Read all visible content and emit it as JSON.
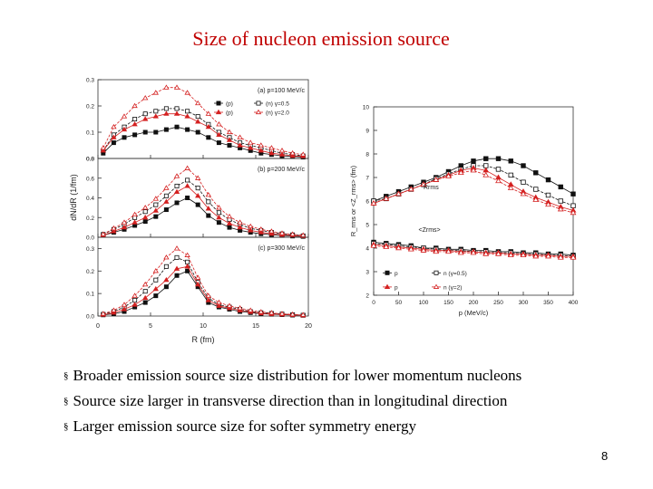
{
  "title": "Size of nucleon emission source",
  "bullets": [
    "Broader emission source size distribution for lower momentum nucleons",
    "Source size larger in transverse direction than in longitudinal direction",
    "Larger emission source size for softer symmetry energy"
  ],
  "bullet_marker": "§",
  "page_number": "8",
  "colors": {
    "black": "#111111",
    "red": "#d42020",
    "title": "#c00000"
  },
  "chart_data": [
    {
      "type": "line",
      "layout": "three stacked panels, shared x-axis",
      "xlabel": "R (fm)",
      "ylabel": "dN/dR (1/fm)",
      "xlim": [
        0,
        20
      ],
      "xticks": [
        "0",
        "5",
        "10",
        "15",
        "20"
      ],
      "x": [
        0.5,
        1.5,
        2.5,
        3.5,
        4.5,
        5.5,
        6.5,
        7.5,
        8.5,
        9.5,
        10.5,
        11.5,
        12.5,
        13.5,
        14.5,
        15.5,
        16.5,
        17.5,
        18.5,
        19.5
      ],
      "legend_labels": {
        "p_stiff": "(p)",
        "n_stiff": "(n) γ=0.5",
        "p_soft": "(p)",
        "n_soft": "(n) γ=2.0"
      },
      "panels": [
        {
          "label": "(a) p=100 MeV/c",
          "ylim": [
            0,
            0.3
          ],
          "yticks": [
            "0.0",
            "0.1",
            "0.2",
            "0.3"
          ],
          "series": [
            {
              "name": "p γ=0.5",
              "color": "black",
              "marker": "filled-square",
              "values": [
                0.02,
                0.06,
                0.08,
                0.09,
                0.1,
                0.1,
                0.11,
                0.12,
                0.11,
                0.1,
                0.08,
                0.06,
                0.05,
                0.04,
                0.03,
                0.02,
                0.015,
                0.01,
                0.008,
                0.005
              ]
            },
            {
              "name": "n γ=0.5",
              "color": "black",
              "marker": "open-square",
              "values": [
                0.03,
                0.09,
                0.12,
                0.15,
                0.17,
                0.18,
                0.19,
                0.19,
                0.18,
                0.16,
                0.13,
                0.1,
                0.08,
                0.06,
                0.05,
                0.04,
                0.03,
                0.02,
                0.015,
                0.01
              ]
            },
            {
              "name": "p γ=2.0",
              "color": "red",
              "marker": "filled-triangle",
              "values": [
                0.03,
                0.08,
                0.11,
                0.13,
                0.15,
                0.16,
                0.17,
                0.17,
                0.16,
                0.14,
                0.12,
                0.09,
                0.07,
                0.05,
                0.04,
                0.03,
                0.02,
                0.015,
                0.01,
                0.008
              ]
            },
            {
              "name": "n γ=2.0",
              "color": "red",
              "marker": "open-triangle",
              "values": [
                0.04,
                0.12,
                0.16,
                0.2,
                0.23,
                0.25,
                0.27,
                0.27,
                0.25,
                0.21,
                0.17,
                0.13,
                0.1,
                0.08,
                0.06,
                0.05,
                0.04,
                0.03,
                0.02,
                0.015
              ]
            }
          ]
        },
        {
          "label": "(b) p=200 MeV/c",
          "ylim": [
            0,
            0.8
          ],
          "yticks": [
            "0.0",
            "0.2",
            "0.4",
            "0.6",
            "0.8"
          ],
          "series": [
            {
              "name": "p γ=0.5",
              "color": "black",
              "marker": "filled-square",
              "values": [
                0.02,
                0.05,
                0.08,
                0.12,
                0.16,
                0.21,
                0.28,
                0.35,
                0.4,
                0.33,
                0.22,
                0.15,
                0.1,
                0.07,
                0.05,
                0.035,
                0.025,
                0.018,
                0.012,
                0.008
              ]
            },
            {
              "name": "n γ=0.5",
              "color": "black",
              "marker": "open-square",
              "values": [
                0.03,
                0.08,
                0.13,
                0.2,
                0.26,
                0.33,
                0.42,
                0.52,
                0.58,
                0.5,
                0.36,
                0.25,
                0.18,
                0.13,
                0.09,
                0.07,
                0.05,
                0.035,
                0.025,
                0.015
              ]
            },
            {
              "name": "p γ=2.0",
              "color": "red",
              "marker": "filled-triangle",
              "values": [
                0.02,
                0.06,
                0.1,
                0.15,
                0.2,
                0.27,
                0.36,
                0.46,
                0.52,
                0.42,
                0.29,
                0.2,
                0.14,
                0.1,
                0.07,
                0.05,
                0.035,
                0.025,
                0.017,
                0.01
              ]
            },
            {
              "name": "n γ=2.0",
              "color": "red",
              "marker": "open-triangle",
              "values": [
                0.03,
                0.09,
                0.15,
                0.23,
                0.3,
                0.39,
                0.5,
                0.62,
                0.7,
                0.6,
                0.43,
                0.3,
                0.21,
                0.15,
                0.11,
                0.08,
                0.06,
                0.04,
                0.03,
                0.02
              ]
            }
          ]
        },
        {
          "label": "(c) p=300 MeV/c",
          "ylim": [
            0,
            0.35
          ],
          "yticks": [
            "0.0",
            "0.1",
            "0.2",
            "0.3"
          ],
          "series": [
            {
              "name": "p γ=0.5",
              "color": "black",
              "marker": "filled-square",
              "values": [
                0.005,
                0.01,
                0.02,
                0.04,
                0.06,
                0.09,
                0.13,
                0.18,
                0.2,
                0.13,
                0.06,
                0.04,
                0.03,
                0.02,
                0.015,
                0.01,
                0.008,
                0.006,
                0.004,
                0.003
              ]
            },
            {
              "name": "n γ=0.5",
              "color": "black",
              "marker": "open-square",
              "values": [
                0.008,
                0.02,
                0.04,
                0.07,
                0.11,
                0.16,
                0.22,
                0.26,
                0.24,
                0.15,
                0.08,
                0.05,
                0.04,
                0.03,
                0.02,
                0.015,
                0.012,
                0.009,
                0.006,
                0.004
              ]
            },
            {
              "name": "p γ=2.0",
              "color": "red",
              "marker": "filled-triangle",
              "values": [
                0.006,
                0.015,
                0.03,
                0.05,
                0.08,
                0.12,
                0.16,
                0.21,
                0.22,
                0.14,
                0.07,
                0.045,
                0.035,
                0.025,
                0.018,
                0.012,
                0.009,
                0.007,
                0.005,
                0.003
              ]
            },
            {
              "name": "n γ=2.0",
              "color": "red",
              "marker": "open-triangle",
              "values": [
                0.01,
                0.025,
                0.05,
                0.09,
                0.14,
                0.2,
                0.26,
                0.3,
                0.27,
                0.17,
                0.09,
                0.06,
                0.045,
                0.035,
                0.025,
                0.018,
                0.014,
                0.01,
                0.007,
                0.005
              ]
            }
          ]
        }
      ]
    },
    {
      "type": "line",
      "xlabel": "p (MeV/c)",
      "ylabel": "R_rms or <Z_rms> (fm)",
      "xlim": [
        0,
        400
      ],
      "ylim": [
        2,
        10
      ],
      "xticks": [
        "0",
        "50",
        "100",
        "150",
        "200",
        "250",
        "300",
        "350",
        "400"
      ],
      "yticks": [
        "2",
        "3",
        "4",
        "5",
        "6",
        "7",
        "8",
        "9",
        "10"
      ],
      "annotations": [
        "Rrms",
        "<Zrms>"
      ],
      "x": [
        0,
        25,
        50,
        75,
        100,
        125,
        150,
        175,
        200,
        225,
        250,
        275,
        300,
        325,
        350,
        375,
        400
      ],
      "legend_labels": {
        "p_stiff": "p",
        "n_stiff": "n (γ=0.5)",
        "p_soft": "p",
        "n_soft": "n (γ=2)"
      },
      "series": [
        {
          "name": "Rrms p γ=0.5",
          "color": "black",
          "marker": "filled-square",
          "values": [
            6.0,
            6.2,
            6.4,
            6.6,
            6.8,
            7.0,
            7.25,
            7.5,
            7.7,
            7.8,
            7.8,
            7.7,
            7.5,
            7.2,
            6.9,
            6.6,
            6.3
          ]
        },
        {
          "name": "Rrms n γ=0.5",
          "color": "black",
          "marker": "open-square",
          "values": [
            6.0,
            6.1,
            6.3,
            6.5,
            6.7,
            6.95,
            7.15,
            7.35,
            7.5,
            7.5,
            7.35,
            7.1,
            6.8,
            6.5,
            6.25,
            6.0,
            5.8
          ]
        },
        {
          "name": "Rrms p γ=2",
          "color": "red",
          "marker": "filled-triangle",
          "values": [
            5.9,
            6.1,
            6.3,
            6.5,
            6.7,
            6.9,
            7.1,
            7.3,
            7.4,
            7.3,
            7.0,
            6.7,
            6.4,
            6.15,
            5.95,
            5.75,
            5.6
          ]
        },
        {
          "name": "Rrms n γ=2",
          "color": "red",
          "marker": "open-triangle",
          "values": [
            5.9,
            6.1,
            6.3,
            6.5,
            6.7,
            6.9,
            7.05,
            7.2,
            7.3,
            7.1,
            6.85,
            6.55,
            6.3,
            6.05,
            5.85,
            5.65,
            5.5
          ]
        },
        {
          "name": "Zrms p γ=0.5",
          "color": "black",
          "marker": "filled-square",
          "values": [
            4.25,
            4.2,
            4.15,
            4.1,
            4.0,
            4.0,
            3.95,
            3.95,
            3.9,
            3.9,
            3.85,
            3.85,
            3.8,
            3.8,
            3.75,
            3.75,
            3.7
          ]
        },
        {
          "name": "Zrms n γ=0.5",
          "color": "black",
          "marker": "open-square",
          "values": [
            4.2,
            4.15,
            4.1,
            4.05,
            4.0,
            3.95,
            3.9,
            3.9,
            3.85,
            3.85,
            3.8,
            3.8,
            3.75,
            3.75,
            3.7,
            3.7,
            3.65
          ]
        },
        {
          "name": "Zrms p γ=2",
          "color": "red",
          "marker": "filled-triangle",
          "values": [
            4.15,
            4.1,
            4.05,
            4.0,
            3.95,
            3.9,
            3.9,
            3.85,
            3.85,
            3.8,
            3.8,
            3.75,
            3.75,
            3.7,
            3.7,
            3.65,
            3.65
          ]
        },
        {
          "name": "Zrms n γ=2",
          "color": "red",
          "marker": "open-triangle",
          "values": [
            4.1,
            4.05,
            4.0,
            3.95,
            3.9,
            3.85,
            3.85,
            3.8,
            3.8,
            3.75,
            3.75,
            3.7,
            3.7,
            3.65,
            3.65,
            3.6,
            3.6
          ]
        }
      ]
    }
  ]
}
